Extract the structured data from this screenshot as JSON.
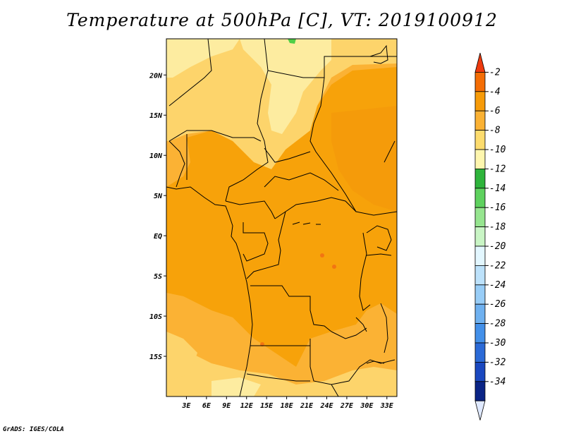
{
  "title": "Temperature at 500hPa [C], VT: 2019100912",
  "footer": "GrADS: IGES/COLA",
  "map": {
    "projection": "lat-lon",
    "lon_range": [
      0,
      34.5
    ],
    "lat_range": [
      -20,
      24.5
    ],
    "lat_ticks": [
      {
        "label": "20N",
        "value": 20
      },
      {
        "label": "15N",
        "value": 15
      },
      {
        "label": "10N",
        "value": 10
      },
      {
        "label": "5N",
        "value": 5
      },
      {
        "label": "EQ",
        "value": 0
      },
      {
        "label": "5S",
        "value": -5
      },
      {
        "label": "10S",
        "value": -10
      },
      {
        "label": "15S",
        "value": -15
      }
    ],
    "lon_ticks": [
      {
        "label": "3E",
        "value": 3
      },
      {
        "label": "6E",
        "value": 6
      },
      {
        "label": "9E",
        "value": 9
      },
      {
        "label": "12E",
        "value": 12
      },
      {
        "label": "15E",
        "value": 15
      },
      {
        "label": "18E",
        "value": 18
      },
      {
        "label": "21E",
        "value": 21
      },
      {
        "label": "24E",
        "value": 24
      },
      {
        "label": "27E",
        "value": 27
      },
      {
        "label": "30E",
        "value": 30
      },
      {
        "label": "33E",
        "value": 33
      }
    ]
  },
  "colorbar": {
    "levels": [
      "-2",
      "-4",
      "-6",
      "-8",
      "-10",
      "-12",
      "-14",
      "-16",
      "-18",
      "-20",
      "-22",
      "-24",
      "-26",
      "-28",
      "-30",
      "-32",
      "-34"
    ],
    "colors": [
      "#ee3a0e",
      "#f46d05",
      "#f79b09",
      "#fbb234",
      "#fddc6e",
      "#fef6ae",
      "#2eb43b",
      "#5ed15e",
      "#96e58f",
      "#c9f5c5",
      "#e3f7ff",
      "#bde2fb",
      "#98cdf7",
      "#6fb1f0",
      "#4390e9",
      "#2b6ad7",
      "#1a48c0",
      "#0a2486"
    ],
    "under_color": "#dfe9ff"
  },
  "fill_colors": {
    "deep": "#f7a20a",
    "mid": "#fbb234",
    "light": "#fdd46b",
    "pale": "#fdeca0",
    "warm": "#f27512",
    "green": "#4fce46"
  }
}
